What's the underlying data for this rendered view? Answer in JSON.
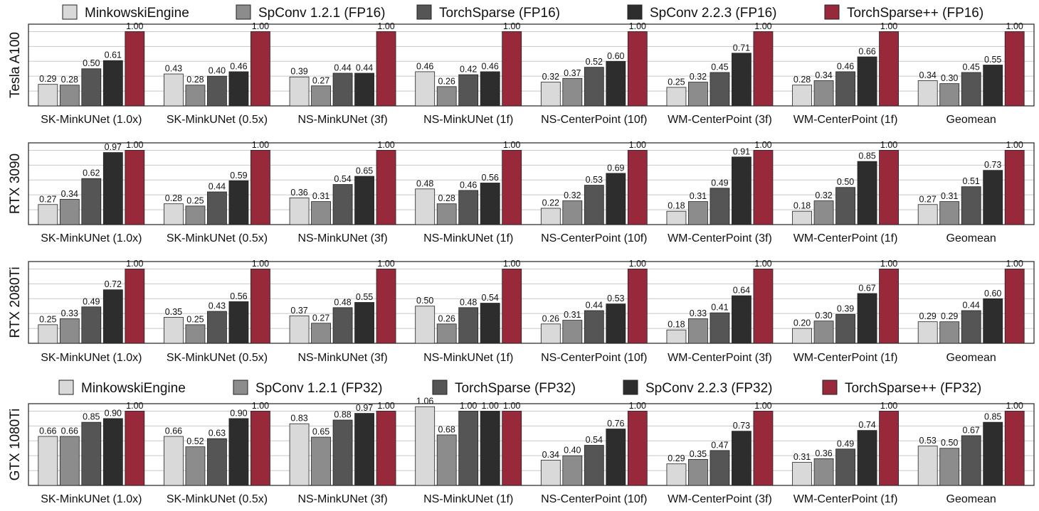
{
  "chart_data": {
    "type": "bar",
    "categories": [
      "SK-MinkUNet (1.0x)",
      "SK-MinkUNet (0.5x)",
      "NS-MinkUNet (3f)",
      "NS-MinkUNet (1f)",
      "NS-CenterPoint (10f)",
      "WM-CenterPoint (3f)",
      "WM-CenterPoint (1f)",
      "Geomean"
    ],
    "ylim": [
      0,
      1.1
    ],
    "grid": true,
    "colors": [
      "#d9d9d9",
      "#8c8c8c",
      "#555555",
      "#2d2d2d",
      "#98293a"
    ],
    "legends": {
      "fp16": [
        "MinkowskiEngine",
        "SpConv 1.2.1 (FP16)",
        "TorchSparse (FP16)",
        "SpConv 2.2.3 (FP16)",
        "TorchSparse++ (FP16)"
      ],
      "fp32": [
        "MinkowskiEngine",
        "SpConv 1.2.1 (FP32)",
        "TorchSparse (FP32)",
        "SpConv 2.2.3 (FP32)",
        "TorchSparse++ (FP32)"
      ]
    },
    "panels": [
      {
        "gpu": "Tesla A100",
        "legend": "fp16",
        "values": [
          [
            0.29,
            0.28,
            0.5,
            0.61,
            1.0
          ],
          [
            0.43,
            0.28,
            0.4,
            0.46,
            1.0
          ],
          [
            0.39,
            0.27,
            0.44,
            0.44,
            1.0
          ],
          [
            0.46,
            0.26,
            0.42,
            0.46,
            1.0
          ],
          [
            0.32,
            0.37,
            0.52,
            0.6,
            1.0
          ],
          [
            0.25,
            0.32,
            0.45,
            0.71,
            1.0
          ],
          [
            0.28,
            0.34,
            0.46,
            0.66,
            1.0
          ],
          [
            0.34,
            0.3,
            0.45,
            0.55,
            1.0
          ]
        ]
      },
      {
        "gpu": "RTX 3090",
        "legend": "fp16",
        "values": [
          [
            0.27,
            0.34,
            0.62,
            0.97,
            1.0
          ],
          [
            0.28,
            0.25,
            0.44,
            0.59,
            1.0
          ],
          [
            0.36,
            0.31,
            0.54,
            0.65,
            1.0
          ],
          [
            0.48,
            0.28,
            0.46,
            0.56,
            1.0
          ],
          [
            0.22,
            0.32,
            0.53,
            0.69,
            1.0
          ],
          [
            0.18,
            0.31,
            0.49,
            0.91,
            1.0
          ],
          [
            0.18,
            0.32,
            0.5,
            0.85,
            1.0
          ],
          [
            0.27,
            0.31,
            0.51,
            0.73,
            1.0
          ]
        ]
      },
      {
        "gpu": "RTX 2080Ti",
        "legend": "fp16",
        "values": [
          [
            0.25,
            0.33,
            0.49,
            0.72,
            1.0
          ],
          [
            0.35,
            0.25,
            0.43,
            0.56,
            1.0
          ],
          [
            0.37,
            0.27,
            0.48,
            0.55,
            1.0
          ],
          [
            0.5,
            0.26,
            0.48,
            0.54,
            1.0
          ],
          [
            0.26,
            0.31,
            0.44,
            0.53,
            1.0
          ],
          [
            0.18,
            0.33,
            0.41,
            0.64,
            1.0
          ],
          [
            0.2,
            0.3,
            0.39,
            0.67,
            1.0
          ],
          [
            0.29,
            0.29,
            0.44,
            0.6,
            1.0
          ]
        ]
      },
      {
        "gpu": "GTX 1080Ti",
        "legend": "fp32",
        "values": [
          [
            0.66,
            0.66,
            0.85,
            0.9,
            1.0
          ],
          [
            0.66,
            0.52,
            0.63,
            0.9,
            1.0
          ],
          [
            0.83,
            0.65,
            0.88,
            0.97,
            1.0
          ],
          [
            1.06,
            0.68,
            1.0,
            1.0,
            1.0
          ],
          [
            0.34,
            0.4,
            0.54,
            0.76,
            1.0
          ],
          [
            0.29,
            0.35,
            0.47,
            0.73,
            1.0
          ],
          [
            0.31,
            0.36,
            0.49,
            0.74,
            1.0
          ],
          [
            0.53,
            0.5,
            0.67,
            0.85,
            1.0
          ]
        ]
      }
    ]
  }
}
